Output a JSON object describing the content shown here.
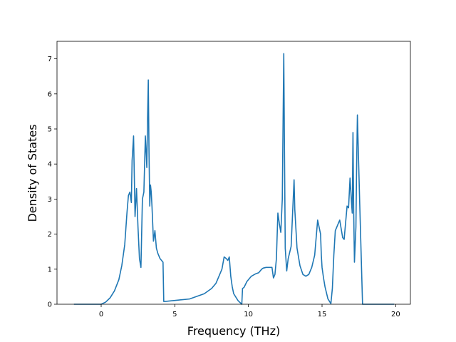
{
  "chart_data": {
    "type": "line",
    "title": "",
    "xlabel": "Frequency (THz)",
    "ylabel": "Density of States",
    "xlim": [
      -3.0,
      21.0
    ],
    "ylim": [
      0,
      7.5
    ],
    "xticks": [
      0,
      5,
      10,
      15,
      20
    ],
    "yticks": [
      0,
      1,
      2,
      3,
      4,
      5,
      6,
      7
    ],
    "xtick_labels": [
      "0",
      "5",
      "10",
      "15",
      "20"
    ],
    "ytick_labels": [
      "0",
      "1",
      "2",
      "3",
      "4",
      "5",
      "6",
      "7"
    ],
    "grid": false,
    "legend": "none",
    "series": [
      {
        "color": "#1f77b4",
        "x": [
          -1.85,
          0.0,
          0.3,
          0.6,
          0.9,
          1.2,
          1.4,
          1.6,
          1.75,
          1.85,
          1.95,
          2.05,
          2.1,
          2.2,
          2.3,
          2.4,
          2.5,
          2.6,
          2.7,
          2.8,
          2.9,
          3.0,
          3.1,
          3.15,
          3.2,
          3.25,
          3.3,
          3.35,
          3.4,
          3.45,
          3.5,
          3.55,
          3.65,
          3.75,
          3.85,
          4.0,
          4.2,
          4.25,
          4.35,
          6.0,
          7.0,
          7.5,
          7.8,
          8.0,
          8.2,
          8.35,
          8.5,
          8.6,
          8.7,
          8.8,
          8.9,
          9.0,
          9.3,
          9.55,
          9.6,
          9.7,
          9.9,
          10.2,
          10.5,
          10.7,
          10.9,
          11.0,
          11.2,
          11.4,
          11.6,
          11.7,
          11.8,
          11.9,
          12.0,
          12.1,
          12.2,
          12.3,
          12.4,
          12.5,
          12.6,
          12.7,
          12.9,
          13.0,
          13.1,
          13.15,
          13.3,
          13.5,
          13.7,
          13.9,
          14.1,
          14.3,
          14.5,
          14.7,
          14.9,
          14.95,
          15.0,
          15.1,
          15.2,
          15.4,
          15.6,
          15.7,
          15.8,
          15.9,
          16.0,
          16.1,
          16.2,
          16.4,
          16.5,
          16.7,
          16.8,
          16.9,
          17.0,
          17.05,
          17.1,
          17.15,
          17.2,
          17.3,
          17.35,
          17.4,
          17.55,
          17.65,
          17.75,
          17.9,
          18.0,
          18.1,
          18.2,
          19.9
        ],
        "y": [
          0.0,
          0.0,
          0.06,
          0.18,
          0.38,
          0.7,
          1.1,
          1.7,
          2.6,
          3.1,
          3.2,
          2.9,
          4.1,
          4.8,
          2.5,
          3.3,
          2.2,
          1.3,
          1.05,
          3.0,
          3.2,
          4.8,
          3.9,
          5.3,
          6.4,
          4.3,
          2.8,
          3.4,
          3.2,
          2.8,
          2.3,
          1.8,
          2.1,
          1.6,
          1.45,
          1.3,
          1.2,
          0.08,
          0.08,
          0.15,
          0.3,
          0.45,
          0.6,
          0.8,
          1.0,
          1.35,
          1.3,
          1.25,
          1.35,
          0.8,
          0.5,
          0.3,
          0.1,
          0.0,
          0.45,
          0.48,
          0.65,
          0.8,
          0.87,
          0.9,
          1.0,
          1.03,
          1.05,
          1.05,
          1.05,
          0.75,
          0.85,
          1.3,
          2.6,
          2.3,
          2.05,
          3.0,
          7.15,
          1.6,
          0.95,
          1.3,
          1.65,
          2.6,
          3.55,
          2.7,
          1.6,
          1.1,
          0.85,
          0.8,
          0.85,
          1.05,
          1.4,
          2.4,
          2.0,
          1.4,
          1.05,
          0.75,
          0.5,
          0.15,
          0.02,
          0.45,
          1.4,
          2.1,
          2.2,
          2.3,
          2.4,
          1.9,
          1.85,
          2.8,
          2.75,
          3.6,
          2.9,
          2.6,
          4.9,
          2.6,
          1.2,
          2.2,
          4.0,
          5.4,
          3.0,
          1.5,
          0.0,
          0.0,
          0.0,
          0.0,
          0.0,
          0.0
        ]
      }
    ]
  }
}
